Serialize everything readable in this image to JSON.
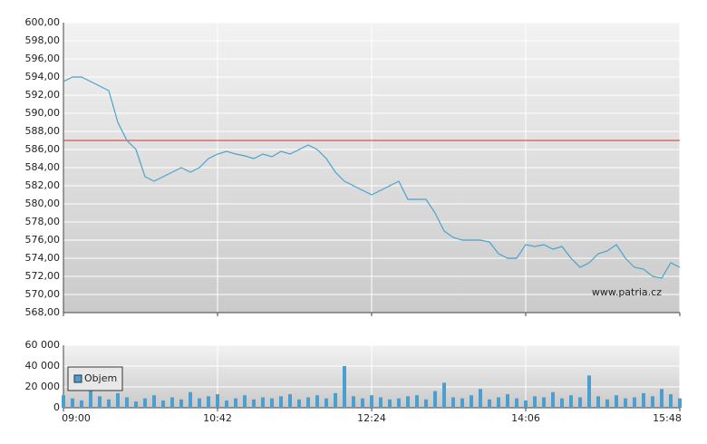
{
  "chart_data": [
    {
      "type": "line",
      "x": [
        "09:00",
        "09:06",
        "09:12",
        "09:18",
        "09:24",
        "09:30",
        "09:36",
        "09:42",
        "09:48",
        "09:54",
        "10:00",
        "10:06",
        "10:12",
        "10:18",
        "10:24",
        "10:30",
        "10:36",
        "10:42",
        "10:48",
        "10:54",
        "11:00",
        "11:06",
        "11:12",
        "11:18",
        "11:24",
        "11:30",
        "11:36",
        "11:42",
        "11:48",
        "11:54",
        "12:00",
        "12:06",
        "12:12",
        "12:18",
        "12:24",
        "12:30",
        "12:36",
        "12:42",
        "12:48",
        "12:54",
        "13:00",
        "13:06",
        "13:12",
        "13:18",
        "13:24",
        "13:30",
        "13:36",
        "13:42",
        "13:48",
        "13:54",
        "14:00",
        "14:06",
        "14:12",
        "14:18",
        "14:24",
        "14:30",
        "14:36",
        "14:42",
        "14:48",
        "14:54",
        "15:00",
        "15:06",
        "15:12",
        "15:18",
        "15:24",
        "15:30",
        "15:36",
        "15:42",
        "15:48"
      ],
      "values": [
        593.5,
        594,
        594,
        593.5,
        593,
        592.5,
        589,
        587,
        586,
        583,
        582.5,
        583,
        583.5,
        584,
        583.5,
        584,
        585,
        585.5,
        585.8,
        585.5,
        585.3,
        585,
        585.5,
        585.2,
        585.8,
        585.5,
        586,
        586.5,
        586,
        585,
        583.5,
        582.5,
        582,
        581.5,
        581,
        581.5,
        582,
        582.5,
        580.5,
        580.5,
        580.5,
        579,
        577,
        576.3,
        576,
        576,
        576,
        575.8,
        574.5,
        574,
        574,
        575.5,
        575.3,
        575.5,
        575,
        575.3,
        574,
        573,
        573.5,
        574.5,
        574.8,
        575.5,
        574,
        573,
        572.8,
        572,
        571.8,
        573.5,
        573
      ],
      "color": "#4aa3cc",
      "xlim": [
        "09:00",
        "15:48"
      ],
      "ylim": [
        568,
        600
      ],
      "yticks": [
        {
          "value": 568,
          "label": "568,00"
        },
        {
          "value": 570,
          "label": "570,00"
        },
        {
          "value": 572,
          "label": "572,00"
        },
        {
          "value": 574,
          "label": "574,00"
        },
        {
          "value": 576,
          "label": "576,00"
        },
        {
          "value": 578,
          "label": "578,00"
        },
        {
          "value": 580,
          "label": "580,00"
        },
        {
          "value": 582,
          "label": "582,00"
        },
        {
          "value": 584,
          "label": "584,00"
        },
        {
          "value": 586,
          "label": "586,00"
        },
        {
          "value": 588,
          "label": "588,00"
        },
        {
          "value": 590,
          "label": "590,00"
        },
        {
          "value": 592,
          "label": "592,00"
        },
        {
          "value": 594,
          "label": "594,00"
        },
        {
          "value": 596,
          "label": "596,00"
        },
        {
          "value": 598,
          "label": "598,00"
        },
        {
          "value": 600,
          "label": "600,00"
        }
      ],
      "reference_line": 587,
      "reference_color": "#cc3333",
      "annotation": "www.patria.cz",
      "grid": true
    },
    {
      "type": "bar",
      "x": [
        "09:00",
        "09:06",
        "09:12",
        "09:18",
        "09:24",
        "09:30",
        "09:36",
        "09:42",
        "09:48",
        "09:54",
        "10:00",
        "10:06",
        "10:12",
        "10:18",
        "10:24",
        "10:30",
        "10:36",
        "10:42",
        "10:48",
        "10:54",
        "11:00",
        "11:06",
        "11:12",
        "11:18",
        "11:24",
        "11:30",
        "11:36",
        "11:42",
        "11:48",
        "11:54",
        "12:00",
        "12:06",
        "12:12",
        "12:18",
        "12:24",
        "12:30",
        "12:36",
        "12:42",
        "12:48",
        "12:54",
        "13:00",
        "13:06",
        "13:12",
        "13:18",
        "13:24",
        "13:30",
        "13:36",
        "13:42",
        "13:48",
        "13:54",
        "14:00",
        "14:06",
        "14:12",
        "14:18",
        "14:24",
        "14:30",
        "14:36",
        "14:42",
        "14:48",
        "14:54",
        "15:00",
        "15:06",
        "15:12",
        "15:18",
        "15:24",
        "15:30",
        "15:36",
        "15:42",
        "15:48"
      ],
      "series": [
        {
          "name": "Objem",
          "color": "#4a9fd0",
          "values": [
            12000,
            9000,
            7000,
            18000,
            11000,
            8000,
            14000,
            10000,
            6000,
            9000,
            12000,
            7000,
            10000,
            8000,
            15000,
            9000,
            11000,
            13000,
            7000,
            9000,
            12000,
            8000,
            10000,
            9000,
            11000,
            13000,
            8000,
            10000,
            12000,
            9000,
            14000,
            40000,
            11000,
            9000,
            12000,
            10000,
            8000,
            9000,
            11000,
            12000,
            8000,
            16000,
            24000,
            10000,
            9000,
            12000,
            18000,
            8000,
            10000,
            13000,
            9000,
            7000,
            11000,
            10000,
            15000,
            9000,
            12000,
            10000,
            31000,
            11000,
            8000,
            12000,
            9000,
            10000,
            14000,
            11000,
            18000,
            13000,
            9000
          ]
        }
      ],
      "xlim": [
        "09:00",
        "15:48"
      ],
      "xticks": [
        "09:00",
        "10:42",
        "12:24",
        "14:06",
        "15:48"
      ],
      "ylim": [
        0,
        60000
      ],
      "yticks": [
        0,
        {
          "value": 20000,
          "label": "20 000"
        },
        {
          "value": 40000,
          "label": "40 000"
        },
        {
          "value": 60000,
          "label": "60 000"
        }
      ],
      "legend": "upper left",
      "grid": true
    }
  ]
}
